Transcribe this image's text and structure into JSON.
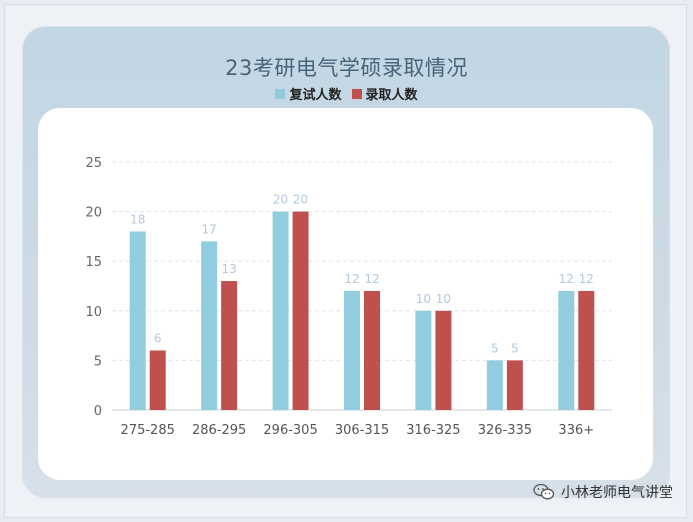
{
  "title": "23考研电气学硕录取情况",
  "legend": [
    {
      "label": "复试人数",
      "color": "#92cddf"
    },
    {
      "label": "录取人数",
      "color": "#c0504d"
    }
  ],
  "watermark": {
    "text": "小林老师电气讲堂",
    "icon": "wechat-icon"
  },
  "chart_data": {
    "type": "bar",
    "title": "23考研电气学硕录取情况",
    "categories": [
      "275-285",
      "286-295",
      "296-305",
      "306-315",
      "316-325",
      "326-335",
      "336+"
    ],
    "series": [
      {
        "name": "复试人数",
        "values": [
          18,
          17,
          20,
          12,
          10,
          5,
          12
        ],
        "color": "#92cddf"
      },
      {
        "name": "录取人数",
        "values": [
          6,
          13,
          20,
          12,
          10,
          5,
          12
        ],
        "color": "#c0504d"
      }
    ],
    "ylim": [
      0,
      25
    ],
    "yticks": [
      0,
      5,
      10,
      15,
      20,
      25
    ],
    "grid": true,
    "legend_position": "top-center",
    "data_labels": true
  }
}
